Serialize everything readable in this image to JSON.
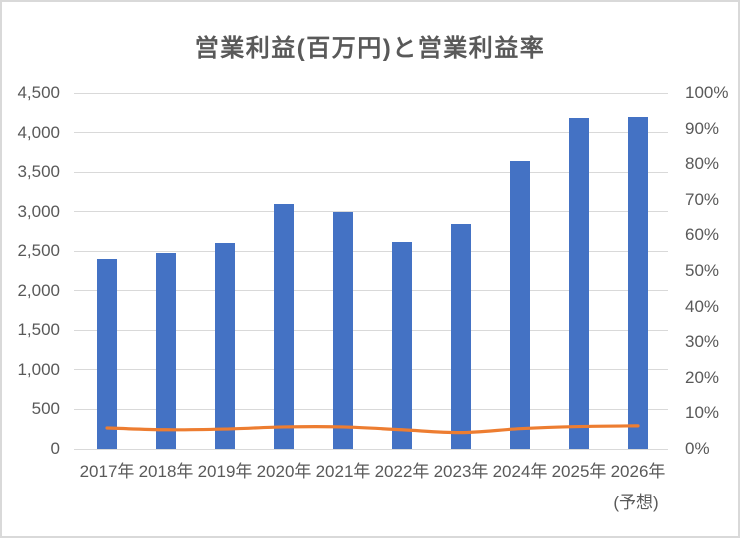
{
  "chart_data": {
    "type": "combo-bar-line",
    "title": "営業利益(百万円)と営業利益率",
    "categories": [
      "2017年",
      "2018年",
      "2019年",
      "2020年",
      "2021年",
      "2022年",
      "2023年",
      "2024年",
      "2025年",
      "2026年"
    ],
    "last_category_note": "(予想)",
    "series": [
      {
        "name": "営業利益(百万円)",
        "type": "bar",
        "axis": "left",
        "color": "#4472C4",
        "values": [
          2400,
          2475,
          2600,
          3100,
          3000,
          2620,
          2850,
          3640,
          4180,
          4200
        ]
      },
      {
        "name": "営業利益率",
        "type": "line",
        "axis": "right",
        "color": "#ED7D31",
        "smoothed": true,
        "values_percent": [
          5.9,
          5.4,
          5.6,
          6.2,
          6.2,
          5.4,
          4.6,
          5.7,
          6.3,
          6.5
        ]
      }
    ],
    "left_axis": {
      "min": 0,
      "max": 4500,
      "step": 500,
      "tick_labels": [
        "4,500",
        "4,000",
        "3,500",
        "3,000",
        "2,500",
        "2,000",
        "1,500",
        "1,000",
        "500",
        "0"
      ]
    },
    "right_axis": {
      "min": 0,
      "max": 100,
      "step": 10,
      "tick_labels": [
        "100%",
        "90%",
        "80%",
        "70%",
        "60%",
        "50%",
        "40%",
        "30%",
        "20%",
        "10%",
        "0%"
      ]
    },
    "grid": {
      "horizontal": true,
      "vertical": false,
      "color": "#D9D9D9"
    },
    "legend": "none",
    "colors": {
      "bar": "#4472C4",
      "line": "#ED7D31",
      "grid": "#D9D9D9",
      "text": "#595959",
      "title": "#595959",
      "background": "#FFFFFF",
      "border": "#D9D9D9"
    }
  }
}
